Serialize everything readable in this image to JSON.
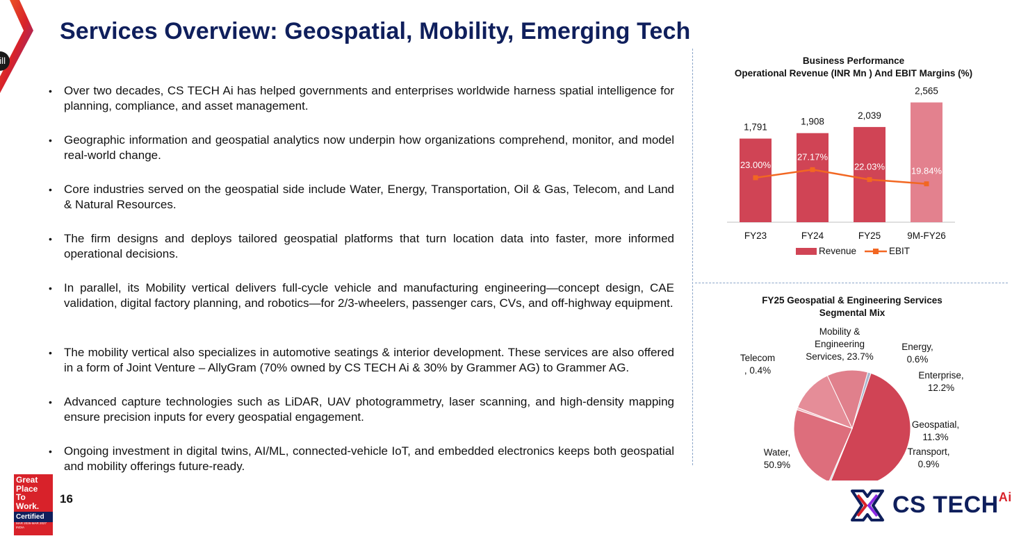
{
  "slide": {
    "title": "Services Overview: Geospatial, Mobility, Emerging Tech",
    "side_tab_label": "ill",
    "page_number": "16"
  },
  "bullets": [
    {
      "text": "Over two decades, CS TECH Ai has helped governments and enterprises worldwide harness spatial intelligence for planning, compliance, and asset management."
    },
    {
      "text": "Geographic information and geospatial analytics now underpin how organizations comprehend, monitor, and model real-world change."
    },
    {
      "text": "Core industries served on the geospatial side include Water, Energy, Transportation, Oil & Gas, Telecom, and Land & Natural Resources."
    },
    {
      "text": "The firm designs and deploys tailored geospatial platforms that turn location data into faster, more informed operational decisions."
    },
    {
      "text": "In parallel, its Mobility vertical delivers full-cycle vehicle and manufacturing engineering—concept design, CAE validation, digital factory planning, and robotics—for 2/3-wheelers, passenger cars, CVs, and off-highway equipment."
    },
    {
      "text": "The mobility vertical also specializes in automotive seatings & interior development. These services are also offered in a form of Joint Venture – AllyGram (70% owned by CS TECH Ai & 30% by Grammer AG) to Grammer AG."
    },
    {
      "text": "Advanced capture technologies such as LiDAR, UAV photogrammetry, laser scanning, and high-density mapping ensure precision inputs for every geospatial engagement."
    },
    {
      "text": "Ongoing investment in digital twins, AI/ML, connected-vehicle IoT, and embedded electronics keeps both geospatial and mobility offerings future-ready."
    }
  ],
  "chart_data": [
    {
      "type": "bar",
      "title_line1": "Business Performance",
      "title_line2": "Operational Revenue  (INR Mn ) And EBIT Margins (%)",
      "categories": [
        "FY23",
        "FY24",
        "FY25",
        "9M-FY26"
      ],
      "series": [
        {
          "name": "Revenue",
          "type": "bar",
          "values": [
            1791,
            1908,
            2039,
            2565
          ],
          "labels": [
            "1,791",
            "1,908",
            "2,039",
            "2,565"
          ]
        },
        {
          "name": "EBIT",
          "type": "line",
          "values": [
            23.0,
            27.17,
            22.03,
            19.84
          ],
          "labels": [
            "23.00%",
            "27.17%",
            "22.03%",
            "19.84%"
          ]
        }
      ],
      "ylim": [
        0,
        2900
      ],
      "ebit_ylim": [
        0,
        70
      ],
      "legend": [
        "Revenue",
        "EBIT"
      ],
      "colors": {
        "bar": "#d04455",
        "bar_last": "#e3818e",
        "line": "#f26722"
      }
    },
    {
      "type": "pie",
      "title_line1": "FY25 Geospatial & Engineering Services",
      "title_line2": "Segmental Mix",
      "slices": [
        {
          "name": "Water",
          "value": 50.9,
          "label_l1": "Water,",
          "label_l2": "50.9%",
          "color": "#d04455"
        },
        {
          "name": "Transport",
          "value": 0.9,
          "label_l1": "Transport,",
          "label_l2": "0.9%",
          "color": "#aab8cf"
        },
        {
          "name": "Geospatial",
          "value": 11.3,
          "label_l1": "Geospatial,",
          "label_l2": "11.3%",
          "color": "#e0808c"
        },
        {
          "name": "Enterprise",
          "value": 12.2,
          "label_l1": "Enterprise,",
          "label_l2": "12.2%",
          "color": "#e58d98"
        },
        {
          "name": "Energy",
          "value": 0.6,
          "label_l1": "Energy,",
          "label_l2": "0.6%",
          "color": "#eeb5bd"
        },
        {
          "name": "Mobility & Engineering Services",
          "value": 23.7,
          "label_l1": "Mobility &",
          "label_l2": "Engineering",
          "label_l3": "Services, 23.7%",
          "color": "#dd6e7c"
        },
        {
          "name": "Telecom",
          "value": 0.4,
          "label_l1": "Telecom",
          "label_l2": ", 0.4%",
          "color": "#c9cdd6"
        }
      ]
    }
  ],
  "badge": {
    "line1": "Great",
    "line2": "Place",
    "line3": "To",
    "line4": "Work.",
    "certified": "Certified",
    "dates": "MAR 2026-MAR 2027",
    "country": "INDIA"
  },
  "logo": {
    "text": "CS TECH",
    "suffix": "Ai"
  }
}
